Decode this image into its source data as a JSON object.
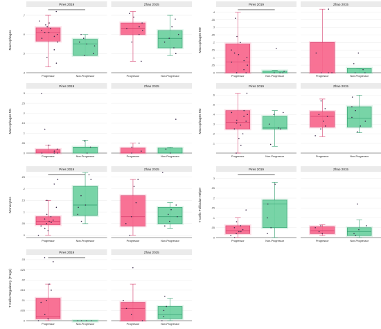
{
  "colors": {
    "Progressor": "#f7668c",
    "Non-Progressor": "#6dd0a0",
    "Progressor_line": "#d63f6d",
    "Non-Progressor_line": "#2f9c6c",
    "point": "#3a2a4a",
    "signif": "#333333"
  },
  "chart_data": [
    {
      "type": "box",
      "ylabel": "Macrophages",
      "yticks": [
        0.4,
        0.5,
        0.6,
        0.7
      ],
      "ylim": [
        0.4,
        0.74
      ],
      "categories": [
        "Progressor",
        "Non-Progressor"
      ],
      "panels": [
        {
          "title": "Pires 2019",
          "signif_bar": true,
          "boxes": [
            {
              "group": "Progressor",
              "min": 0.43,
              "q1": 0.565,
              "median": 0.61,
              "q3": 0.635,
              "max": 0.7,
              "points": [
                0.72,
                0.67,
                0.66,
                0.65,
                0.64,
                0.63,
                0.62,
                0.61,
                0.61,
                0.6,
                0.59,
                0.58,
                0.56,
                0.52,
                0.48,
                0.45
              ]
            },
            {
              "group": "Non-Progressor",
              "min": 0.49,
              "q1": 0.49,
              "median": 0.55,
              "q3": 0.575,
              "max": 0.6,
              "points": [
                0.6,
                0.58,
                0.56,
                0.55,
                0.54,
                0.5,
                0.49
              ]
            }
          ]
        },
        {
          "title": "Zhao 2015",
          "signif_bar": false,
          "boxes": [
            {
              "group": "Progressor",
              "min": 0.46,
              "q1": 0.6,
              "median": 0.63,
              "q3": 0.66,
              "max": 0.72,
              "points": [
                0.71,
                0.69,
                0.66,
                0.64,
                0.63,
                0.62,
                0.6,
                0.56,
                0.46
              ]
            },
            {
              "group": "Non-Progressor",
              "min": 0.49,
              "q1": 0.53,
              "median": 0.58,
              "q3": 0.62,
              "max": 0.7,
              "points": [
                0.68,
                0.64,
                0.6,
                0.58,
                0.56,
                0.53,
                0.5
              ]
            }
          ]
        }
      ]
    },
    {
      "type": "box",
      "ylabel": "Macrophages M0",
      "yticks": [
        0.0,
        0.05,
        0.1,
        0.15,
        0.2,
        0.25,
        0.3,
        0.35,
        0.4
      ],
      "ylim": [
        0.0,
        0.43
      ],
      "categories": [
        "Progressor",
        "Non-Progressor"
      ],
      "panels": [
        {
          "title": "Pires 2019",
          "signif_bar": true,
          "boxes": [
            {
              "group": "Progressor",
              "min": 0.0,
              "q1": 0.0,
              "median": 0.07,
              "q3": 0.19,
              "max": 0.4,
              "points": [
                0.36,
                0.24,
                0.2,
                0.15,
                0.13,
                0.12,
                0.1,
                0.08,
                0.07,
                0.05,
                0.02,
                0.0,
                0.0,
                0.0
              ]
            },
            {
              "group": "Non-Progressor",
              "min": 0.0,
              "q1": 0.0,
              "median": 0.0,
              "q3": 0.012,
              "max": 0.015,
              "points": [
                0.16,
                0.01,
                0.0,
                0.0,
                0.0
              ]
            }
          ]
        },
        {
          "title": "Zhao 2015",
          "signif_bar": false,
          "boxes": [
            {
              "group": "Progressor",
              "min": 0.0,
              "q1": 0.0,
              "median": 0.0,
              "q3": 0.2,
              "max": 0.42,
              "points": [
                0.42,
                0.13,
                0.0,
                0.0,
                0.0
              ]
            },
            {
              "group": "Non-Progressor",
              "min": 0.0,
              "q1": 0.0,
              "median": 0.0,
              "q3": 0.03,
              "max": 0.03,
              "points": [
                0.13,
                0.06,
                0.02,
                0.0,
                0.0
              ]
            }
          ]
        }
      ]
    },
    {
      "type": "box",
      "ylabel": "Macrophages M1",
      "yticks": [
        0.0,
        0.05,
        0.1,
        0.15,
        0.2,
        0.25,
        0.3
      ],
      "ylim": [
        0.0,
        0.32
      ],
      "categories": [
        "Progressor",
        "Non-Progressor"
      ],
      "panels": [
        {
          "title": "Pires 2019",
          "signif_bar": false,
          "boxes": [
            {
              "group": "Progressor",
              "min": 0.0,
              "q1": 0.0,
              "median": 0.005,
              "q3": 0.018,
              "max": 0.04,
              "points": [
                0.3,
                0.12,
                0.04,
                0.02,
                0.01,
                0.0,
                0.0,
                0.0
              ]
            },
            {
              "group": "Non-Progressor",
              "min": 0.0,
              "q1": 0.0,
              "median": 0.03,
              "q3": 0.03,
              "max": 0.065,
              "points": [
                0.06,
                0.03,
                0.0
              ]
            }
          ]
        },
        {
          "title": "Zhao 2015",
          "signif_bar": false,
          "boxes": [
            {
              "group": "Progressor",
              "min": 0.0,
              "q1": 0.0,
              "median": 0.0,
              "q3": 0.025,
              "max": 0.05,
              "points": [
                0.05,
                0.03,
                0.01,
                0.0
              ]
            },
            {
              "group": "Non-Progressor",
              "min": 0.0,
              "q1": 0.0,
              "median": 0.0,
              "q3": 0.025,
              "max": 0.03,
              "points": [
                0.17,
                0.02,
                0.0
              ]
            }
          ]
        }
      ]
    },
    {
      "type": "box",
      "ylabel": "Macrophages M2",
      "yticks": [
        0.1,
        0.2,
        0.3,
        0.4,
        0.5,
        0.6
      ],
      "ylim": [
        0.0,
        0.66
      ],
      "categories": [
        "Progressor",
        "Non-Progressor"
      ],
      "panels": [
        {
          "title": "Pires 2019",
          "signif_bar": false,
          "boxes": [
            {
              "group": "Progressor",
              "min": 0.0,
              "q1": 0.25,
              "median": 0.32,
              "q3": 0.44,
              "max": 0.62,
              "points": [
                0.62,
                0.44,
                0.42,
                0.4,
                0.38,
                0.34,
                0.33,
                0.31,
                0.29,
                0.25,
                0.2,
                0.15,
                0.08,
                0.0
              ]
            },
            {
              "group": "Non-Progressor",
              "min": 0.07,
              "q1": 0.25,
              "median": 0.26,
              "q3": 0.38,
              "max": 0.44,
              "points": [
                0.42,
                0.4,
                0.3,
                0.26,
                0.25,
                0.09
              ]
            }
          ]
        },
        {
          "title": "Zhao 2015",
          "signif_bar": false,
          "boxes": [
            {
              "group": "Progressor",
              "min": 0.17,
              "q1": 0.27,
              "median": 0.38,
              "q3": 0.43,
              "max": 0.56,
              "points": [
                0.54,
                0.46,
                0.4,
                0.38,
                0.33,
                0.28,
                0.25,
                0.18
              ]
            },
            {
              "group": "Non-Progressor",
              "min": 0.21,
              "q1": 0.27,
              "median": 0.36,
              "q3": 0.48,
              "max": 0.6,
              "points": [
                0.58,
                0.48,
                0.44,
                0.37,
                0.33,
                0.28,
                0.22
              ]
            }
          ]
        }
      ]
    },
    {
      "type": "box",
      "ylabel": "Monocytes",
      "yticks": [
        0.0,
        0.05,
        0.1,
        0.15,
        0.2,
        0.25
      ],
      "ylim": [
        -0.01,
        0.27
      ],
      "categories": [
        "Progressor",
        "Non-Progressor"
      ],
      "panels": [
        {
          "title": "Pires 2019",
          "signif_bar": true,
          "boxes": [
            {
              "group": "Progressor",
              "min": 0.0,
              "q1": 0.045,
              "median": 0.06,
              "q3": 0.08,
              "max": 0.15,
              "points": [
                0.24,
                0.22,
                0.15,
                0.12,
                0.09,
                0.08,
                0.07,
                0.065,
                0.06,
                0.055,
                0.05,
                0.04,
                0.03,
                0.02,
                0.0
              ]
            },
            {
              "group": "Non-Progressor",
              "min": 0.05,
              "q1": 0.085,
              "median": 0.13,
              "q3": 0.21,
              "max": 0.27,
              "points": [
                0.26,
                0.24,
                0.17,
                0.13,
                0.12,
                0.09,
                0.06
              ]
            }
          ]
        },
        {
          "title": "Zhao 2015",
          "signif_bar": false,
          "boxes": [
            {
              "group": "Progressor",
              "min": 0.0,
              "q1": 0.04,
              "median": 0.08,
              "q3": 0.17,
              "max": 0.24,
              "points": [
                0.24,
                0.21,
                0.14,
                0.08,
                0.05,
                0.0
              ]
            },
            {
              "group": "Non-Progressor",
              "min": 0.03,
              "q1": 0.05,
              "median": 0.08,
              "q3": 0.12,
              "max": 0.14,
              "points": [
                0.27,
                0.13,
                0.11,
                0.09,
                0.08,
                0.06,
                0.04
              ]
            }
          ]
        }
      ]
    },
    {
      "type": "box",
      "ylabel": "T Cells Follicular Helper",
      "yticks": [
        0.0,
        0.05,
        0.1,
        0.15,
        0.2,
        0.25,
        0.3
      ],
      "ylim": [
        0.0,
        0.33
      ],
      "categories": [
        "Progressor",
        "Non-Progressor"
      ],
      "panels": [
        {
          "title": "Pires 2019",
          "signif_bar": true,
          "boxes": [
            {
              "group": "Progressor",
              "min": 0.0,
              "q1": 0.02,
              "median": 0.035,
              "q3": 0.06,
              "max": 0.1,
              "points": [
                0.14,
                0.08,
                0.06,
                0.05,
                0.04,
                0.03,
                0.03,
                0.02,
                0.01,
                0.0
              ]
            },
            {
              "group": "Non-Progressor",
              "min": 0.0,
              "q1": 0.05,
              "median": 0.17,
              "q3": 0.19,
              "max": 0.28,
              "points": [
                0.27,
                0.17,
                0.1,
                0.05,
                0.02
              ]
            }
          ]
        },
        {
          "title": "Zhao 2015",
          "signif_bar": false,
          "boxes": [
            {
              "group": "Progressor",
              "min": 0.01,
              "q1": 0.02,
              "median": 0.035,
              "q3": 0.055,
              "max": 0.065,
              "points": [
                0.06,
                0.05,
                0.03,
                0.02
              ]
            },
            {
              "group": "Non-Progressor",
              "min": 0.0,
              "q1": 0.01,
              "median": 0.03,
              "q3": 0.05,
              "max": 0.09,
              "points": [
                0.17,
                0.06,
                0.04,
                0.02,
                0.01
              ]
            }
          ]
        }
      ]
    },
    {
      "type": "box",
      "ylabel": "T Cells Regulatory (Tregs)",
      "yticks": [
        0.0,
        0.005,
        0.01,
        0.015,
        0.02,
        0.025,
        0.03
      ],
      "ylim": [
        0.0,
        0.032
      ],
      "categories": [
        "Progressor",
        "Non-Progressor"
      ],
      "panels": [
        {
          "title": "Pires 2019",
          "signif_bar": true,
          "boxes": [
            {
              "group": "Progressor",
              "min": 0.0,
              "q1": 0.001,
              "median": 0.002,
              "q3": 0.011,
              "max": 0.018,
              "points": [
                0.031,
                0.029,
                0.018,
                0.015,
                0.01,
                0.009,
                0.003,
                0.001,
                0.0
              ]
            },
            {
              "group": "Non-Progressor",
              "min": 0.0,
              "q1": 0.0,
              "median": 0.0,
              "q3": 0.0,
              "max": 0.0,
              "points": [
                0.0,
                0.0,
                0.0,
                0.0
              ]
            }
          ]
        },
        {
          "title": "Zhao 2015",
          "signif_bar": false,
          "boxes": [
            {
              "group": "Progressor",
              "min": 0.0,
              "q1": 0.0,
              "median": 0.006,
              "q3": 0.009,
              "max": 0.018,
              "points": [
                0.026,
                0.01,
                0.006,
                0.003,
                0.0
              ]
            },
            {
              "group": "Non-Progressor",
              "min": 0.0,
              "q1": 0.001,
              "median": 0.003,
              "q3": 0.007,
              "max": 0.011,
              "points": [
                0.012,
                0.007,
                0.005,
                0.002,
                0.0
              ]
            }
          ]
        }
      ]
    }
  ]
}
